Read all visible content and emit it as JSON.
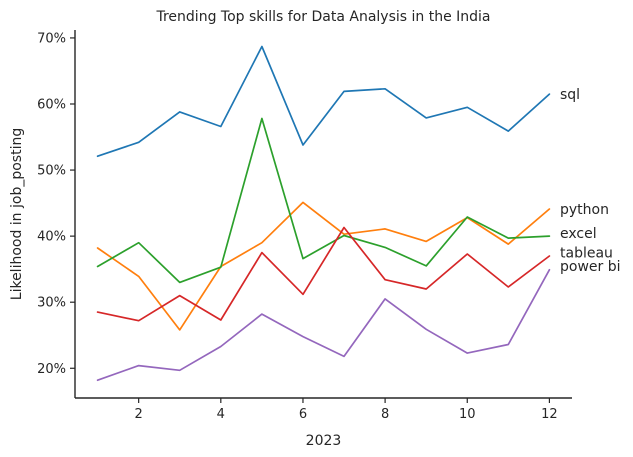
{
  "chart_data": {
    "type": "line",
    "title": "Trending Top skills for Data Analysis in the India",
    "xlabel": "2023",
    "ylabel": "Likelihood in job_posting",
    "x": [
      1,
      2,
      3,
      4,
      5,
      6,
      7,
      8,
      9,
      10,
      11,
      12
    ],
    "xlim": [
      0.45,
      12.55
    ],
    "ylim": [
      15.5,
      71.2
    ],
    "xticks": [
      2,
      4,
      6,
      8,
      10,
      12
    ],
    "xtick_labels": [
      "2",
      "4",
      "6",
      "8",
      "10",
      "12"
    ],
    "yticks": [
      20,
      30,
      40,
      50,
      60,
      70
    ],
    "ytick_labels": [
      "20%",
      "30%",
      "40%",
      "50%",
      "60%",
      "70%"
    ],
    "grid": false,
    "legend": "inline labels at right end of lines",
    "series": [
      {
        "name": "sql",
        "color": "#1f77b4",
        "values": [
          52.1,
          54.2,
          58.8,
          56.6,
          68.7,
          53.8,
          61.9,
          62.3,
          57.9,
          59.5,
          55.9,
          61.5
        ]
      },
      {
        "name": "python",
        "color": "#ff7f0e",
        "values": [
          38.2,
          33.9,
          25.8,
          35.4,
          39.0,
          45.1,
          40.3,
          41.1,
          39.2,
          42.8,
          38.8,
          44.1
        ]
      },
      {
        "name": "excel",
        "color": "#2ca02c",
        "values": [
          35.4,
          39.0,
          33.0,
          35.3,
          57.8,
          36.6,
          40.1,
          38.3,
          35.5,
          42.9,
          39.7,
          40.0
        ]
      },
      {
        "name": "tableau",
        "color": "#d62728",
        "values": [
          28.5,
          27.2,
          31.0,
          27.3,
          37.5,
          31.2,
          41.3,
          33.4,
          32.0,
          37.3,
          32.3,
          37.0
        ]
      },
      {
        "name": "power bi",
        "color": "#9467bd",
        "values": [
          18.2,
          20.4,
          19.7,
          23.3,
          28.2,
          24.8,
          21.8,
          30.5,
          25.9,
          22.3,
          23.6,
          34.9
        ]
      }
    ],
    "labels": [
      {
        "text": "sql",
        "y": 61.5
      },
      {
        "text": "python",
        "y": 44.1
      },
      {
        "text": "excel",
        "y": 40.5
      },
      {
        "text": "tableau",
        "y": 37.5
      },
      {
        "text": "power bi",
        "y": 35.5
      }
    ]
  }
}
